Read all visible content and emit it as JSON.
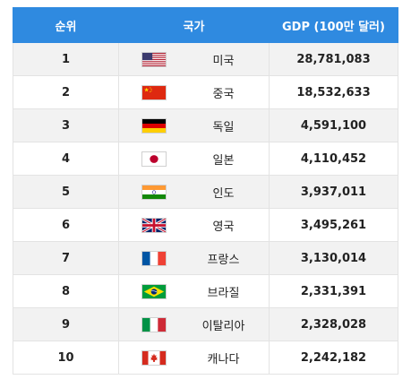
{
  "table": {
    "headers": {
      "rank": "순위",
      "country": "국가",
      "gdp": "GDP (100만 달러)"
    },
    "rows": [
      {
        "rank": "1",
        "country": "미국",
        "gdp": "28,781,083",
        "flag_icon": "usa-flag-icon"
      },
      {
        "rank": "2",
        "country": "중국",
        "gdp": "18,532,633",
        "flag_icon": "china-flag-icon"
      },
      {
        "rank": "3",
        "country": "독일",
        "gdp": "4,591,100",
        "flag_icon": "germany-flag-icon"
      },
      {
        "rank": "4",
        "country": "일본",
        "gdp": "4,110,452",
        "flag_icon": "japan-flag-icon"
      },
      {
        "rank": "5",
        "country": "인도",
        "gdp": "3,937,011",
        "flag_icon": "india-flag-icon"
      },
      {
        "rank": "6",
        "country": "영국",
        "gdp": "3,495,261",
        "flag_icon": "uk-flag-icon"
      },
      {
        "rank": "7",
        "country": "프랑스",
        "gdp": "3,130,014",
        "flag_icon": "france-flag-icon"
      },
      {
        "rank": "8",
        "country": "브라질",
        "gdp": "2,331,391",
        "flag_icon": "brazil-flag-icon"
      },
      {
        "rank": "9",
        "country": "이탈리아",
        "gdp": "2,328,028",
        "flag_icon": "italy-flag-icon"
      },
      {
        "rank": "10",
        "country": "캐나다",
        "gdp": "2,242,182",
        "flag_icon": "canada-flag-icon"
      }
    ]
  },
  "colors": {
    "header_bg": "#2f8ae0",
    "header_text": "#ffffff",
    "row_alt_bg": "#f2f2f2",
    "row_bg": "#ffffff"
  }
}
